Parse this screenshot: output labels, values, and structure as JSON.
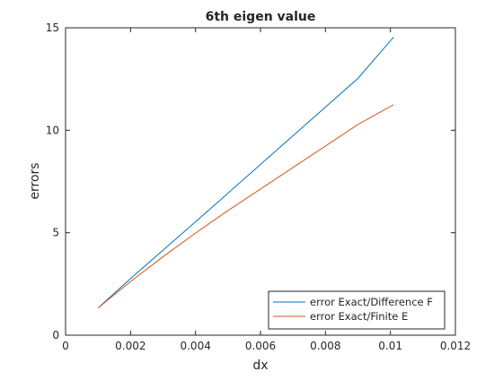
{
  "chart_data": {
    "type": "line",
    "title": "6th eigen value",
    "xlabel": "dx",
    "ylabel": "errors",
    "xlim": [
      0,
      0.012
    ],
    "ylim": [
      0,
      15
    ],
    "xticks": [
      0,
      0.002,
      0.004,
      0.006,
      0.008,
      0.01,
      0.012
    ],
    "xtick_labels": [
      "0",
      "0.002",
      "0.004",
      "0.006",
      "0.008",
      "0.01",
      "0.012"
    ],
    "yticks": [
      0,
      5,
      10,
      15
    ],
    "ytick_labels": [
      "0",
      "5",
      "10",
      "15"
    ],
    "grid": false,
    "legend_position": "bottom-right",
    "series": [
      {
        "name": "error Exact/Difference F",
        "color": "#0072BD",
        "x": [
          0.001,
          0.002,
          0.003,
          0.004,
          0.005,
          0.006,
          0.007,
          0.008,
          0.009,
          0.0101
        ],
        "y": [
          1.33,
          2.76,
          4.15,
          5.53,
          6.93,
          8.33,
          9.73,
          11.13,
          12.53,
          14.55
        ]
      },
      {
        "name": "error Exact/Finite E",
        "color": "#D95319",
        "x": [
          0.001,
          0.002,
          0.003,
          0.004,
          0.005,
          0.006,
          0.007,
          0.008,
          0.009,
          0.0101
        ],
        "y": [
          1.33,
          2.62,
          3.83,
          4.98,
          6.08,
          7.13,
          8.18,
          9.23,
          10.28,
          11.25
        ]
      }
    ]
  }
}
